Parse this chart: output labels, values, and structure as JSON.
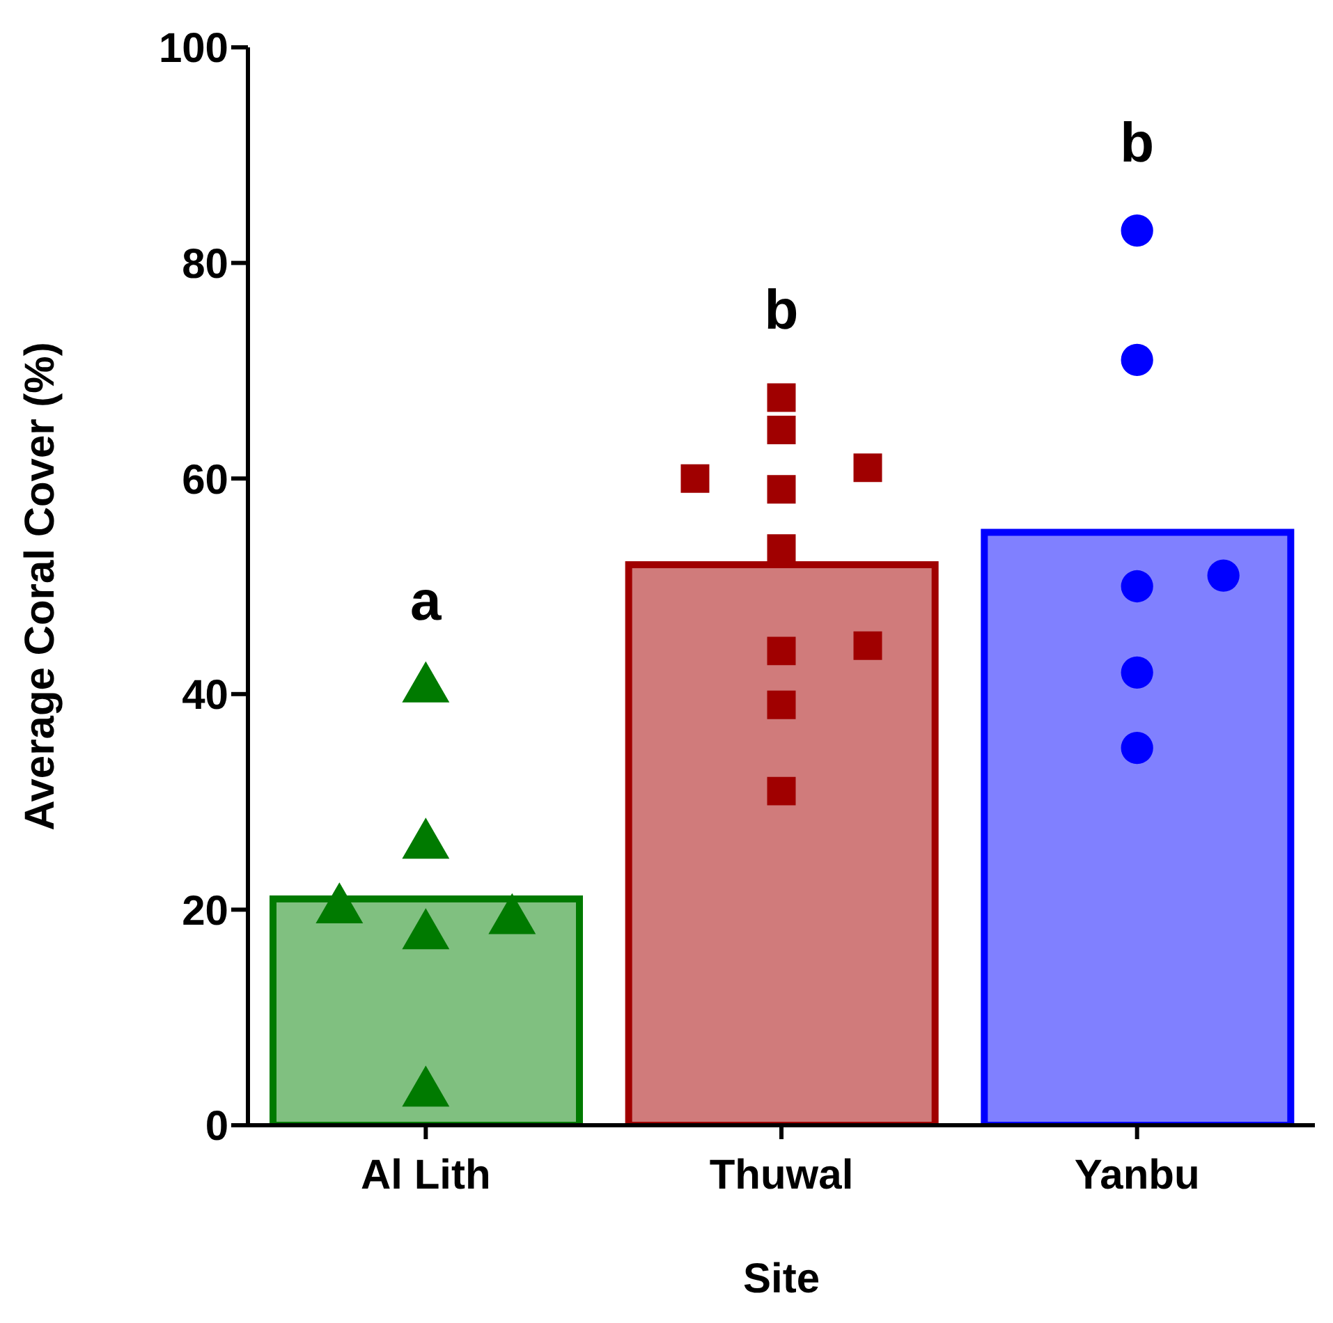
{
  "chart_data": {
    "type": "bar",
    "categories": [
      "Al Lith",
      "Thuwal",
      "Yanbu"
    ],
    "xlabel": "Site",
    "ylabel": "Average Coral Cover (%)",
    "ylim": [
      0,
      100
    ],
    "yticks": [
      0,
      20,
      40,
      60,
      80,
      100
    ],
    "grid": false,
    "legend": false,
    "annotations": [
      "a",
      "b",
      "b"
    ],
    "series": [
      {
        "values": [
          21,
          52,
          55
        ],
        "colors": [
          "#80c080",
          "#d07b7b",
          "#8080ff"
        ]
      },
      {
        "type": "scatter",
        "marker": "triangle",
        "color": "#007a00",
        "x": [
          "Al Lith",
          "Al Lith",
          "Al Lith",
          "Al Lith",
          "Al Lith",
          "Al Lith"
        ],
        "values": [
          40.5,
          26,
          17.6,
          19,
          20,
          3
        ]
      },
      {
        "type": "scatter",
        "marker": "square",
        "color": "#a00000",
        "x": [
          "Thuwal",
          "Thuwal",
          "Thuwal",
          "Thuwal",
          "Thuwal",
          "Thuwal",
          "Thuwal",
          "Thuwal",
          "Thuwal",
          "Thuwal"
        ],
        "values": [
          67.5,
          64.5,
          59,
          61,
          60,
          53.5,
          44,
          44.5,
          39,
          31
        ]
      },
      {
        "type": "scatter",
        "marker": "circle",
        "color": "#0000ff",
        "x": [
          "Yanbu",
          "Yanbu",
          "Yanbu",
          "Yanbu",
          "Yanbu",
          "Yanbu"
        ],
        "values": [
          83,
          71,
          50,
          51,
          42,
          35
        ]
      }
    ]
  }
}
